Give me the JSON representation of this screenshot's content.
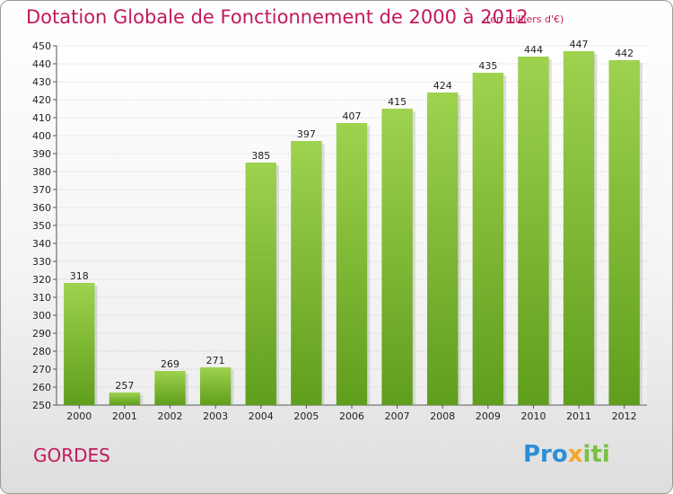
{
  "header": {
    "title": "Dotation Globale de Fonctionnement de 2000 à 2012",
    "subtitle": "(en milliers d'€)"
  },
  "footer": {
    "place": "GORDES",
    "logo": {
      "part1": "Pro",
      "part2": "x",
      "part3": "iti"
    }
  },
  "colors": {
    "bar": "#7cc02f",
    "title": "#c2185b",
    "grid": "#c8c8c8"
  },
  "chart_data": {
    "type": "bar",
    "title": "Dotation Globale de Fonctionnement de 2000 à 2012",
    "subtitle": "(en milliers d'€)",
    "categories": [
      "2000",
      "2001",
      "2002",
      "2003",
      "2004",
      "2005",
      "2006",
      "2007",
      "2008",
      "2009",
      "2010",
      "2011",
      "2012"
    ],
    "values": [
      318,
      257,
      269,
      271,
      385,
      397,
      407,
      415,
      424,
      435,
      444,
      447,
      442
    ],
    "ylim": [
      250,
      450
    ],
    "ytick_step": 10,
    "xlabel": "",
    "ylabel": "",
    "grid": true,
    "data_labels": true
  }
}
